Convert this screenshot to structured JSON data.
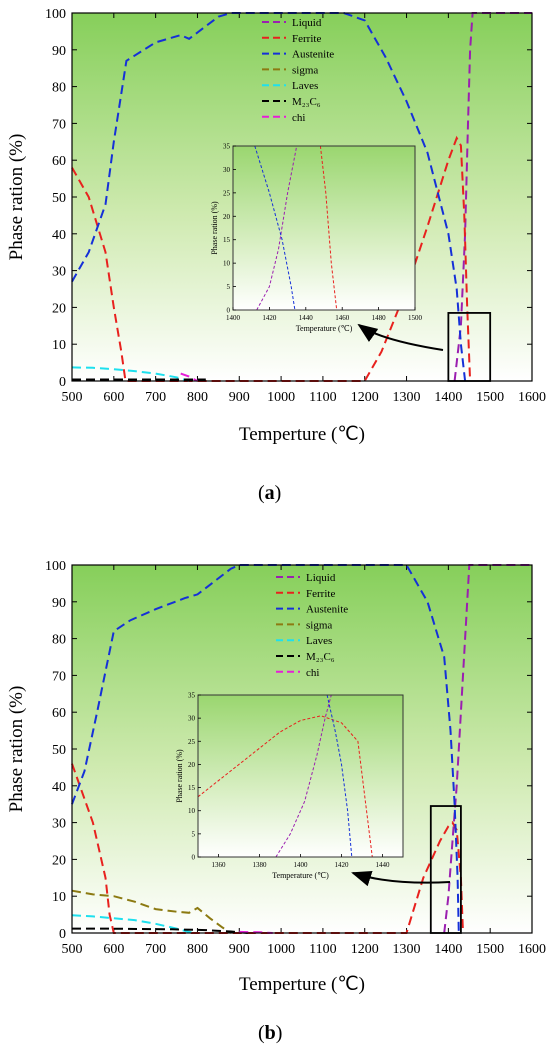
{
  "chart_data": [
    {
      "type": "line",
      "panel_label": "(a)",
      "panel_letter": "a",
      "xlabel": "Temperture (℃)",
      "ylabel": "Phase ration (%)",
      "xlim": [
        500,
        1600
      ],
      "ylim": [
        0,
        100
      ],
      "xticks": [
        "500",
        "600",
        "700",
        "800",
        "900",
        "1000",
        "1100",
        "1200",
        "1300",
        "1400",
        "1500",
        "1600"
      ],
      "yticks": [
        "0",
        "10",
        "20",
        "30",
        "40",
        "50",
        "60",
        "70",
        "80",
        "90",
        "100"
      ],
      "legend_position": "top-center",
      "series": [
        {
          "name": "Liquid",
          "color": "#9b1fb0",
          "x": [
            1415,
            1430,
            1440,
            1447,
            1452,
            1458,
            1600
          ],
          "y": [
            0,
            15,
            40,
            70,
            90,
            100,
            100
          ]
        },
        {
          "name": "Ferrite",
          "color": "#e8211e",
          "x": [
            500,
            540,
            580,
            600,
            618,
            628,
            632,
            1200,
            1240,
            1300,
            1350,
            1400,
            1420,
            1430,
            1438,
            1445,
            1452
          ],
          "y": [
            58,
            50,
            35,
            20,
            8,
            0,
            0,
            0,
            8,
            25,
            42,
            60,
            66,
            64,
            45,
            20,
            0
          ]
        },
        {
          "name": "Austenite",
          "color": "#1530d8",
          "x": [
            500,
            540,
            580,
            600,
            630,
            700,
            760,
            780,
            850,
            880,
            1000,
            1150,
            1200,
            1250,
            1300,
            1350,
            1400,
            1420,
            1430,
            1440
          ],
          "y": [
            27,
            35,
            48,
            65,
            87,
            92,
            94,
            93,
            99,
            100,
            100,
            100,
            98,
            88,
            76,
            62,
            40,
            25,
            10,
            0
          ]
        },
        {
          "name": "sigma",
          "color": "#8c7a12",
          "x": [
            500,
            800
          ],
          "y": [
            0.3,
            0.3
          ]
        },
        {
          "name": "Laves",
          "color": "#1ee0ee",
          "x": [
            500,
            550,
            600,
            650,
            700,
            750,
            780
          ],
          "y": [
            3.7,
            3.6,
            3.2,
            2.7,
            2,
            1,
            0
          ]
        },
        {
          "name": "M₂₃C₆",
          "color": "#000000",
          "x": [
            500,
            820
          ],
          "y": [
            0.4,
            0.4
          ]
        },
        {
          "name": "chi",
          "color": "#e61ed8",
          "x": [
            760,
            780,
            800
          ],
          "y": [
            2,
            1.2,
            0
          ]
        }
      ],
      "inset": {
        "xlabel": "Temperature (℃)",
        "ylabel": "Phase ration (%)",
        "xlim": [
          1400,
          1500
        ],
        "ylim": [
          0,
          35
        ],
        "xticks": [
          "1400",
          "1420",
          "1440",
          "1460",
          "1480",
          "1500"
        ],
        "yticks": [
          "0",
          "5",
          "10",
          "15",
          "20",
          "25",
          "30",
          "35"
        ],
        "series": [
          {
            "name": "Liquid",
            "color": "#9b1fb0",
            "x": [
              1413,
              1420,
              1425,
              1430,
              1435
            ],
            "y": [
              0,
              5,
              13,
              25,
              35
            ]
          },
          {
            "name": "Austenite",
            "color": "#1530d8",
            "x": [
              1412,
              1420,
              1427,
              1432,
              1434
            ],
            "y": [
              35,
              25,
              15,
              5,
              0
            ]
          },
          {
            "name": "Ferrite",
            "color": "#e8211e",
            "x": [
              1448,
              1451,
              1454,
              1457
            ],
            "y": [
              35,
              25,
              10,
              0
            ]
          }
        ]
      }
    },
    {
      "type": "line",
      "panel_label": "(b)",
      "panel_letter": "b",
      "xlabel": "Temperture (℃)",
      "ylabel": "Phase ration (%)",
      "xlim": [
        500,
        1600
      ],
      "ylim": [
        0,
        100
      ],
      "xticks": [
        "500",
        "600",
        "700",
        "800",
        "900",
        "1000",
        "1100",
        "1200",
        "1300",
        "1400",
        "1500",
        "1600"
      ],
      "yticks": [
        "0",
        "10",
        "20",
        "30",
        "40",
        "50",
        "60",
        "70",
        "80",
        "90",
        "100"
      ],
      "legend_position": "top-right",
      "series": [
        {
          "name": "Liquid",
          "color": "#9b1fb0",
          "x": [
            1390,
            1400,
            1410,
            1420,
            1430,
            1440,
            1450,
            1600
          ],
          "y": [
            0,
            10,
            25,
            40,
            60,
            80,
            100,
            100
          ]
        },
        {
          "name": "Ferrite",
          "color": "#e8211e",
          "x": [
            500,
            550,
            580,
            590,
            600,
            605,
            1300,
            1340,
            1380,
            1400,
            1410,
            1420,
            1430,
            1435
          ],
          "y": [
            46,
            30,
            15,
            5,
            0,
            0,
            0,
            15,
            25,
            29,
            30,
            28,
            15,
            0
          ]
        },
        {
          "name": "Austenite",
          "color": "#1530d8",
          "x": [
            500,
            530,
            560,
            600,
            640,
            700,
            770,
            800,
            880,
            900,
            1300,
            1350,
            1390,
            1405,
            1415,
            1422,
            1425
          ],
          "y": [
            35,
            44,
            60,
            82,
            85,
            88,
            91,
            92,
            99,
            100,
            100,
            90,
            75,
            55,
            35,
            15,
            0
          ]
        },
        {
          "name": "sigma",
          "color": "#8c7a12",
          "x": [
            500,
            550,
            600,
            650,
            700,
            750,
            780,
            800,
            830,
            860,
            880
          ],
          "y": [
            11.5,
            10.5,
            10,
            8.5,
            6.5,
            5.8,
            5.5,
            6.8,
            4,
            1.5,
            0
          ]
        },
        {
          "name": "Laves",
          "color": "#1ee0ee",
          "x": [
            500,
            550,
            600,
            650,
            700,
            750,
            790
          ],
          "y": [
            4.8,
            4.5,
            4,
            3.5,
            2.5,
            1.2,
            0
          ]
        },
        {
          "name": "M₂₃C₆",
          "color": "#000000",
          "x": [
            500,
            580,
            660,
            740,
            820,
            880,
            920
          ],
          "y": [
            1.2,
            1.2,
            1.1,
            1,
            0.8,
            0.4,
            0
          ]
        },
        {
          "name": "chi",
          "color": "#e61ed8",
          "x": [
            900,
            950,
            980
          ],
          "y": [
            0.3,
            0.2,
            0
          ]
        }
      ],
      "inset": {
        "xlabel": "Temperature (℃)",
        "ylabel": "Phase ration (%)",
        "xlim": [
          1350,
          1450
        ],
        "ylim": [
          0,
          35
        ],
        "xticks": [
          "1360",
          "1380",
          "1400",
          "1420",
          "1440"
        ],
        "yticks": [
          "0",
          "5",
          "10",
          "15",
          "20",
          "25",
          "30",
          "35"
        ],
        "series": [
          {
            "name": "Ferrite",
            "color": "#e8211e",
            "x": [
              1350,
              1370,
              1390,
              1400,
              1410,
              1420,
              1428,
              1435
            ],
            "y": [
              13,
              20,
              27,
              29.5,
              30.5,
              29,
              25,
              0
            ]
          },
          {
            "name": "Liquid",
            "color": "#9b1fb0",
            "x": [
              1388,
              1395,
              1402,
              1408,
              1412,
              1415
            ],
            "y": [
              0,
              5,
              12,
              22,
              30,
              35
            ]
          },
          {
            "name": "Austenite",
            "color": "#1530d8",
            "x": [
              1413,
              1417,
              1420,
              1423,
              1425
            ],
            "y": [
              35,
              27,
              20,
              10,
              0
            ]
          }
        ]
      }
    }
  ]
}
